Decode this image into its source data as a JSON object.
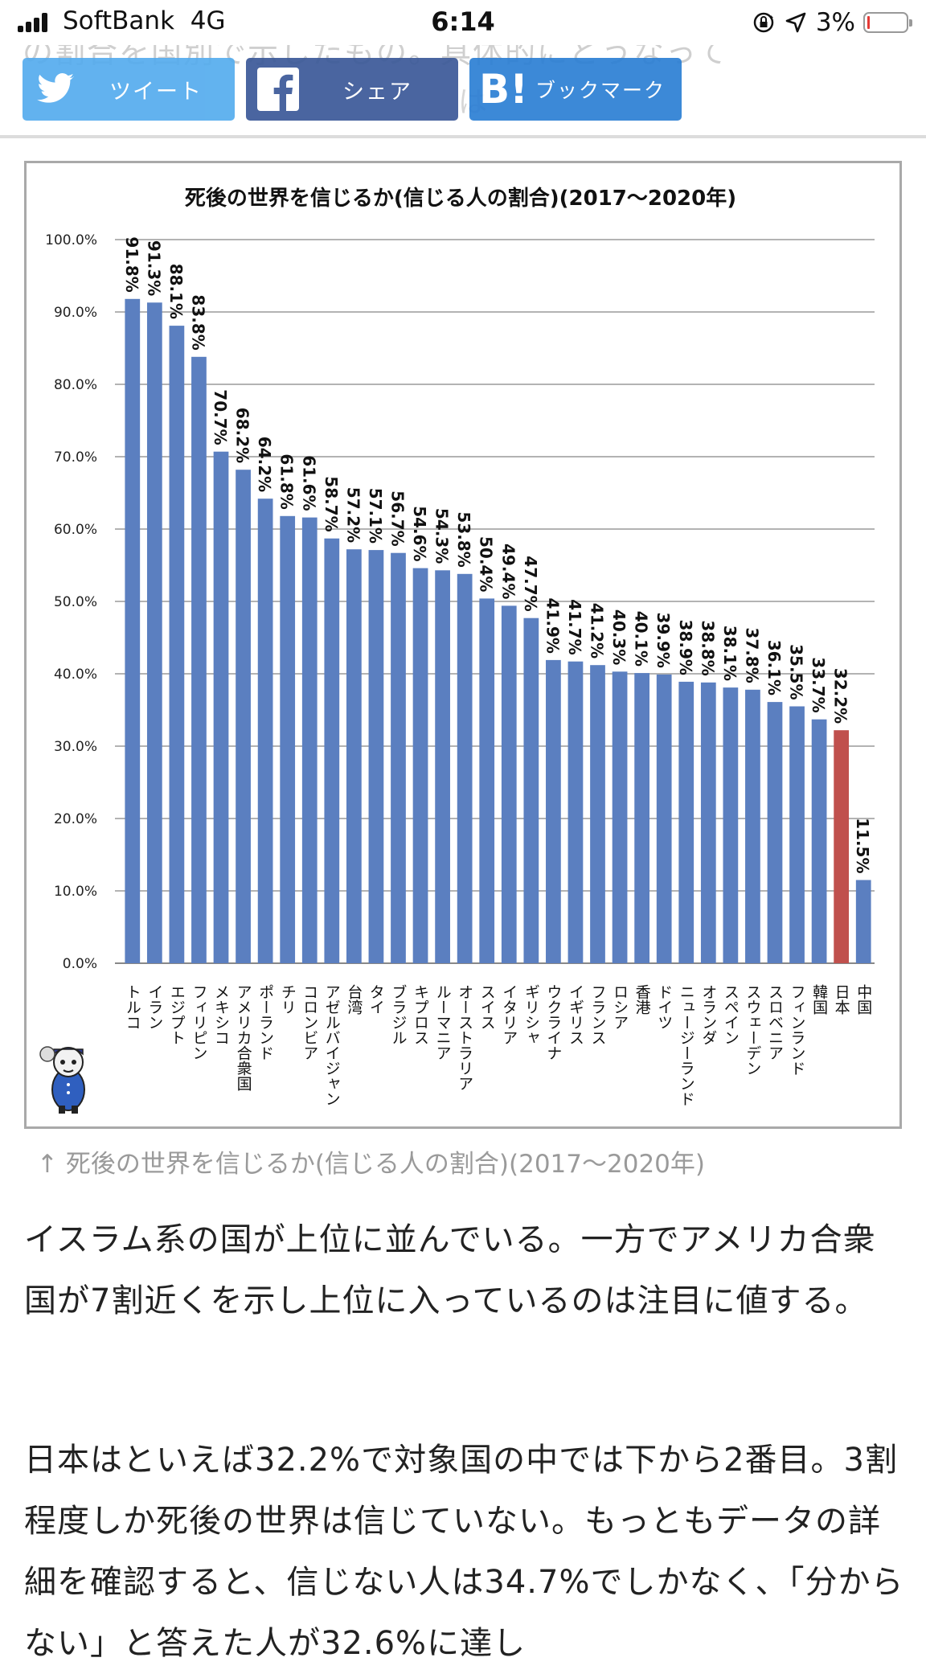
{
  "status_bar": {
    "carrier": "SoftBank",
    "network": "4G",
    "time": "6:14",
    "battery_percent": "3%",
    "battery_level": 0.03
  },
  "behind_text": "の割合を国別で示したもの。具体的にどうなって",
  "behind_text2": "は",
  "share_bar": {
    "twitter_label": "ツイート",
    "facebook_label": "シェア",
    "hatena_icon_text": "B!",
    "hatena_label": "ブックマーク"
  },
  "chart_data": {
    "type": "bar",
    "title": "死後の世界を信じるか(信じる人の割合)(2017〜2020年)",
    "xlabel": "",
    "ylabel": "",
    "ylim": [
      0,
      100
    ],
    "yticks": [
      "0.0%",
      "10.0%",
      "20.0%",
      "30.0%",
      "40.0%",
      "50.0%",
      "60.0%",
      "70.0%",
      "80.0%",
      "90.0%",
      "100.0%"
    ],
    "grid": true,
    "bar_color": "#5b7fc0",
    "highlight_color": "#c0504d",
    "highlight_category": "日本",
    "categories": [
      "トルコ",
      "イラン",
      "エジプト",
      "フィリピン",
      "メキシコ",
      "アメリカ合衆国",
      "ポーランド",
      "チリ",
      "コロンビア",
      "アゼルバイジャン",
      "台湾",
      "タイ",
      "ブラジル",
      "キプロス",
      "ルーマニア",
      "オーストラリア",
      "スイス",
      "イタリア",
      "ギリシャ",
      "ウクライナ",
      "イギリス",
      "フランス",
      "ロシア",
      "香港",
      "ドイツ",
      "ニュージーランド",
      "オランダ",
      "スペイン",
      "スウェーデン",
      "スロベニア",
      "フィンランド",
      "韓国",
      "日本",
      "中国"
    ],
    "values": [
      91.8,
      91.3,
      88.1,
      83.8,
      70.7,
      68.2,
      64.2,
      61.8,
      61.6,
      58.7,
      57.2,
      57.1,
      56.7,
      54.6,
      54.3,
      53.8,
      50.4,
      49.4,
      47.7,
      41.9,
      41.7,
      41.2,
      40.3,
      40.1,
      39.9,
      38.9,
      38.8,
      38.1,
      37.8,
      36.1,
      35.5,
      33.7,
      32.2,
      11.5
    ],
    "data_labels": [
      "91.8%",
      "91.3%",
      "88.1%",
      "83.8%",
      "70.7%",
      "68.2%",
      "64.2%",
      "61.8%",
      "61.6%",
      "58.7%",
      "57.2%",
      "57.1%",
      "56.7%",
      "54.6%",
      "54.3%",
      "53.8%",
      "50.4%",
      "49.4%",
      "47.7%",
      "41.9%",
      "41.7%",
      "41.2%",
      "40.3%",
      "40.1%",
      "39.9%",
      "38.9%",
      "38.8%",
      "38.1%",
      "37.8%",
      "36.1%",
      "35.5%",
      "33.7%",
      "32.2%",
      "11.5%"
    ]
  },
  "caption": "↑ 死後の世界を信じるか(信じる人の割合)(2017〜2020年)",
  "paragraphs": [
    "イスラム系の国が上位に並んでいる。一方でアメリカ合衆国が7割近くを示し上位に入っているのは注目に値する。",
    "日本はといえば32.2%で対象国の中では下から2番目。3割程度しか死後の世界は信じていない。もっともデータの詳細を確認すると、信じない人は34.7%でしかなく、「分からない」と答えた人が32.6%に達し"
  ]
}
